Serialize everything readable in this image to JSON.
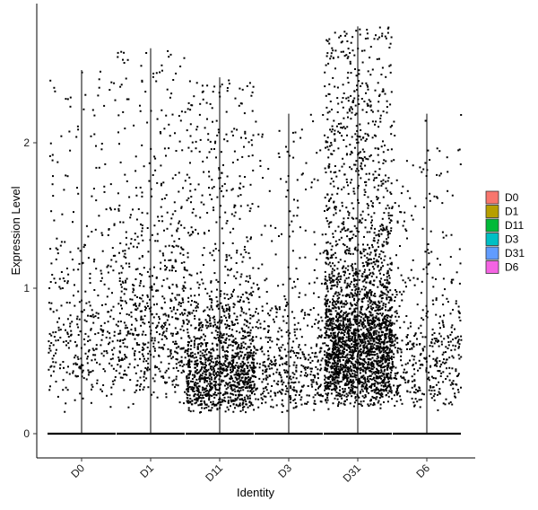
{
  "chart_data": {
    "type": "violin-jitter",
    "title": "",
    "xlabel": "Identity",
    "ylabel": "Expression Level",
    "ylim": [
      -0.08,
      2.8
    ],
    "yticks": [
      0,
      1,
      2
    ],
    "grid": false,
    "legend_position": "right",
    "categories": [
      "D0",
      "D1",
      "D11",
      "D3",
      "D31",
      "D6"
    ],
    "legend": [
      {
        "label": "D0",
        "color": "#F8766D"
      },
      {
        "label": "D1",
        "color": "#B79F00"
      },
      {
        "label": "D11",
        "color": "#00BA38"
      },
      {
        "label": "D3",
        "color": "#00BFC4"
      },
      {
        "label": "D31",
        "color": "#619CFF"
      },
      {
        "label": "D6",
        "color": "#F564E3"
      }
    ],
    "series": [
      {
        "name": "D0",
        "max": 2.5,
        "zero_fraction": 0.8,
        "nonzero_points": 380,
        "median_nonzero": 0.7
      },
      {
        "name": "D1",
        "max": 2.65,
        "zero_fraction": 0.7,
        "nonzero_points": 650,
        "median_nonzero": 0.8
      },
      {
        "name": "D11",
        "max": 2.45,
        "zero_fraction": 0.55,
        "nonzero_points": 1400,
        "median_nonzero": 0.45
      },
      {
        "name": "D3",
        "max": 2.2,
        "zero_fraction": 0.75,
        "nonzero_points": 500,
        "median_nonzero": 0.45
      },
      {
        "name": "D31",
        "max": 2.8,
        "zero_fraction": 0.35,
        "nonzero_points": 2700,
        "median_nonzero": 0.65
      },
      {
        "name": "D6",
        "max": 2.2,
        "zero_fraction": 0.75,
        "nonzero_points": 460,
        "median_nonzero": 0.55
      }
    ],
    "point_color": "#000000"
  }
}
